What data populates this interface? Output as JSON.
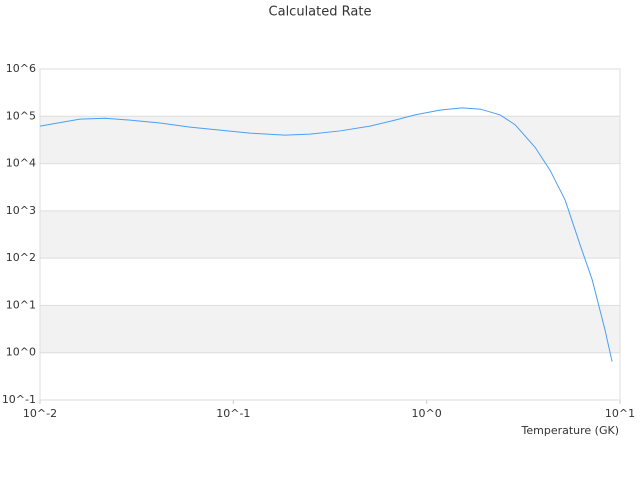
{
  "chart_data": {
    "type": "line",
    "title": "Calculated Rate",
    "x_label": "Temperature (GK)",
    "x": [
      0.01,
      0.0161,
      0.0217,
      0.0292,
      0.0418,
      0.0597,
      0.0853,
      0.122,
      0.185,
      0.249,
      0.356,
      0.509,
      0.686,
      0.871,
      1.17,
      1.52,
      1.89,
      2.4,
      2.87,
      3.64,
      4.35,
      5.2,
      6.22,
      7.18,
      8.37,
      9.1
    ],
    "values": [
      62000,
      87000,
      91000,
      83000,
      72000,
      59000,
      51000,
      44000,
      40000,
      42000,
      49000,
      62000,
      83000,
      107000,
      135000,
      151000,
      142000,
      107000,
      66000,
      22000,
      7200,
      1700,
      190,
      35,
      3.0,
      0.65
    ],
    "color": "#4a9ff5",
    "x_log": true,
    "y_log": true,
    "grid": true,
    "xlim": [
      0.01,
      10
    ],
    "ylim": [
      0.1,
      1000000
    ],
    "xticks": [
      {
        "value": 0.01,
        "label": "10^-2"
      },
      {
        "value": 0.1,
        "label": "10^-1"
      },
      {
        "value": 1,
        "label": "10^0"
      },
      {
        "value": 10,
        "label": "10^1"
      }
    ],
    "yticks": [
      {
        "value": 0.1,
        "label": "10^-1"
      },
      {
        "value": 1,
        "label": "10^0"
      },
      {
        "value": 10,
        "label": "10^1"
      },
      {
        "value": 100,
        "label": "10^2"
      },
      {
        "value": 1000,
        "label": "10^3"
      },
      {
        "value": 10000,
        "label": "10^4"
      },
      {
        "value": 100000,
        "label": "10^5"
      },
      {
        "value": 1000000,
        "label": "10^6"
      }
    ]
  }
}
